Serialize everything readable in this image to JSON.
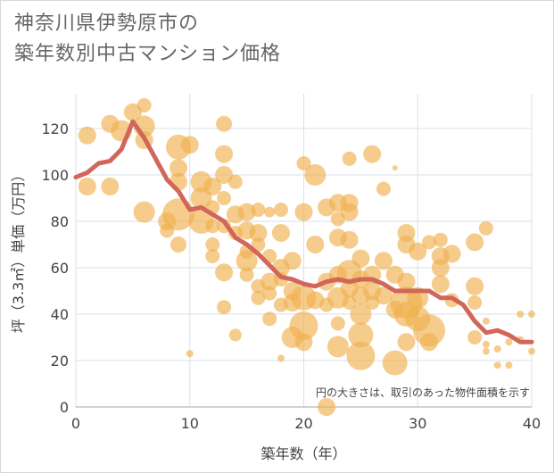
{
  "title_line1": "神奈川県伊勢原市の",
  "title_line2": "築年数別中古マンション価格",
  "colors": {
    "bubble": "#f0b04f",
    "line": "#d1665a",
    "grid": "#d8e1ea",
    "frame": "#d9d9d9",
    "text": "#444444",
    "title": "#666666"
  },
  "chart_data": {
    "type": "scatter",
    "xlabel": "築年数（年）",
    "ylabel": "坪（3.3㎡）単価（万円）",
    "xlim": [
      0,
      40
    ],
    "ylim": [
      0,
      135
    ],
    "xticks": [
      0,
      10,
      20,
      30,
      40
    ],
    "yticks": [
      0,
      20,
      40,
      60,
      80,
      100,
      120
    ],
    "grid": true,
    "annotation": "円の大きさは、取引のあった物件面積を示す",
    "series": [
      {
        "kind": "bubble",
        "points": [
          {
            "x": 1,
            "y": 117,
            "s": 10
          },
          {
            "x": 1,
            "y": 95,
            "s": 10
          },
          {
            "x": 3,
            "y": 122,
            "s": 10
          },
          {
            "x": 3,
            "y": 95,
            "s": 10
          },
          {
            "x": 4,
            "y": 119,
            "s": 12
          },
          {
            "x": 5,
            "y": 127,
            "s": 10
          },
          {
            "x": 6,
            "y": 130,
            "s": 8
          },
          {
            "x": 6,
            "y": 121,
            "s": 12
          },
          {
            "x": 6,
            "y": 115,
            "s": 10
          },
          {
            "x": 6,
            "y": 84,
            "s": 12
          },
          {
            "x": 8,
            "y": 80,
            "s": 10
          },
          {
            "x": 8,
            "y": 76,
            "s": 8
          },
          {
            "x": 9,
            "y": 112,
            "s": 14
          },
          {
            "x": 9,
            "y": 103,
            "s": 10
          },
          {
            "x": 9,
            "y": 97,
            "s": 10
          },
          {
            "x": 9,
            "y": 83,
            "s": 18
          },
          {
            "x": 9,
            "y": 70,
            "s": 9
          },
          {
            "x": 10,
            "y": 113,
            "s": 10
          },
          {
            "x": 10,
            "y": 23,
            "s": 4
          },
          {
            "x": 11,
            "y": 97,
            "s": 12
          },
          {
            "x": 11,
            "y": 90,
            "s": 12
          },
          {
            "x": 11,
            "y": 80,
            "s": 14
          },
          {
            "x": 12,
            "y": 95,
            "s": 10
          },
          {
            "x": 12,
            "y": 86,
            "s": 8
          },
          {
            "x": 12,
            "y": 78,
            "s": 8
          },
          {
            "x": 12,
            "y": 70,
            "s": 8
          },
          {
            "x": 12,
            "y": 65,
            "s": 8
          },
          {
            "x": 13,
            "y": 122,
            "s": 9
          },
          {
            "x": 13,
            "y": 109,
            "s": 10
          },
          {
            "x": 13,
            "y": 100,
            "s": 10
          },
          {
            "x": 13,
            "y": 90,
            "s": 8
          },
          {
            "x": 13,
            "y": 78,
            "s": 8
          },
          {
            "x": 13,
            "y": 58,
            "s": 10
          },
          {
            "x": 13,
            "y": 43,
            "s": 8
          },
          {
            "x": 14,
            "y": 97,
            "s": 8
          },
          {
            "x": 14,
            "y": 83,
            "s": 10
          },
          {
            "x": 14,
            "y": 75,
            "s": 8
          },
          {
            "x": 14,
            "y": 31,
            "s": 7
          },
          {
            "x": 15,
            "y": 84,
            "s": 10
          },
          {
            "x": 15,
            "y": 76,
            "s": 10
          },
          {
            "x": 15,
            "y": 67,
            "s": 8
          },
          {
            "x": 15,
            "y": 63,
            "s": 12
          },
          {
            "x": 15,
            "y": 57,
            "s": 8
          },
          {
            "x": 16,
            "y": 85,
            "s": 8
          },
          {
            "x": 16,
            "y": 75,
            "s": 10
          },
          {
            "x": 16,
            "y": 70,
            "s": 8
          },
          {
            "x": 16,
            "y": 52,
            "s": 8
          },
          {
            "x": 16,
            "y": 47,
            "s": 8
          },
          {
            "x": 17,
            "y": 84,
            "s": 6
          },
          {
            "x": 17,
            "y": 65,
            "s": 8
          },
          {
            "x": 17,
            "y": 54,
            "s": 10
          },
          {
            "x": 17,
            "y": 49,
            "s": 8
          },
          {
            "x": 17,
            "y": 38,
            "s": 8
          },
          {
            "x": 18,
            "y": 85,
            "s": 8
          },
          {
            "x": 18,
            "y": 75,
            "s": 10
          },
          {
            "x": 18,
            "y": 60,
            "s": 10
          },
          {
            "x": 18,
            "y": 55,
            "s": 8
          },
          {
            "x": 18,
            "y": 44,
            "s": 8
          },
          {
            "x": 18,
            "y": 21,
            "s": 4
          },
          {
            "x": 19,
            "y": 63,
            "s": 10
          },
          {
            "x": 19,
            "y": 50,
            "s": 10
          },
          {
            "x": 19,
            "y": 45,
            "s": 10
          },
          {
            "x": 19,
            "y": 30,
            "s": 12
          },
          {
            "x": 20,
            "y": 105,
            "s": 8
          },
          {
            "x": 20,
            "y": 84,
            "s": 10
          },
          {
            "x": 20,
            "y": 47,
            "s": 14
          },
          {
            "x": 20,
            "y": 35,
            "s": 16
          },
          {
            "x": 20,
            "y": 28,
            "s": 10
          },
          {
            "x": 21,
            "y": 100,
            "s": 12
          },
          {
            "x": 21,
            "y": 70,
            "s": 10
          },
          {
            "x": 21,
            "y": 46,
            "s": 10
          },
          {
            "x": 22,
            "y": 86,
            "s": 10
          },
          {
            "x": 22,
            "y": 54,
            "s": 10
          },
          {
            "x": 22,
            "y": 44,
            "s": 8
          },
          {
            "x": 22,
            "y": 0,
            "s": 10
          },
          {
            "x": 23,
            "y": 88,
            "s": 10
          },
          {
            "x": 23,
            "y": 81,
            "s": 8
          },
          {
            "x": 23,
            "y": 73,
            "s": 10
          },
          {
            "x": 23,
            "y": 57,
            "s": 10
          },
          {
            "x": 23,
            "y": 47,
            "s": 12
          },
          {
            "x": 23,
            "y": 36,
            "s": 8
          },
          {
            "x": 23,
            "y": 26,
            "s": 12
          },
          {
            "x": 24,
            "y": 107,
            "s": 8
          },
          {
            "x": 24,
            "y": 88,
            "s": 10
          },
          {
            "x": 24,
            "y": 84,
            "s": 10
          },
          {
            "x": 24,
            "y": 72,
            "s": 10
          },
          {
            "x": 24,
            "y": 58,
            "s": 14
          },
          {
            "x": 24,
            "y": 51,
            "s": 10
          },
          {
            "x": 24,
            "y": 45,
            "s": 8
          },
          {
            "x": 25,
            "y": 64,
            "s": 10
          },
          {
            "x": 25,
            "y": 55,
            "s": 10
          },
          {
            "x": 25,
            "y": 48,
            "s": 10
          },
          {
            "x": 25,
            "y": 40,
            "s": 12
          },
          {
            "x": 25,
            "y": 31,
            "s": 14
          },
          {
            "x": 25,
            "y": 22,
            "s": 16
          },
          {
            "x": 26,
            "y": 109,
            "s": 10
          },
          {
            "x": 26,
            "y": 57,
            "s": 10
          },
          {
            "x": 26,
            "y": 50,
            "s": 10
          },
          {
            "x": 26,
            "y": 45,
            "s": 8
          },
          {
            "x": 27,
            "y": 94,
            "s": 8
          },
          {
            "x": 27,
            "y": 63,
            "s": 10
          },
          {
            "x": 27,
            "y": 48,
            "s": 10
          },
          {
            "x": 28,
            "y": 103,
            "s": 3
          },
          {
            "x": 28,
            "y": 57,
            "s": 10
          },
          {
            "x": 28,
            "y": 42,
            "s": 10
          },
          {
            "x": 28,
            "y": 19,
            "s": 14
          },
          {
            "x": 29,
            "y": 75,
            "s": 10
          },
          {
            "x": 29,
            "y": 70,
            "s": 10
          },
          {
            "x": 29,
            "y": 54,
            "s": 10
          },
          {
            "x": 29,
            "y": 45,
            "s": 18
          },
          {
            "x": 29,
            "y": 40,
            "s": 14
          },
          {
            "x": 29,
            "y": 28,
            "s": 10
          },
          {
            "x": 30,
            "y": 67,
            "s": 10
          },
          {
            "x": 30,
            "y": 47,
            "s": 12
          },
          {
            "x": 30,
            "y": 38,
            "s": 14
          },
          {
            "x": 31,
            "y": 71,
            "s": 8
          },
          {
            "x": 31,
            "y": 33,
            "s": 18
          },
          {
            "x": 31,
            "y": 28,
            "s": 10
          },
          {
            "x": 32,
            "y": 72,
            "s": 8
          },
          {
            "x": 32,
            "y": 65,
            "s": 10
          },
          {
            "x": 32,
            "y": 60,
            "s": 10
          },
          {
            "x": 32,
            "y": 53,
            "s": 10
          },
          {
            "x": 33,
            "y": 66,
            "s": 10
          },
          {
            "x": 33,
            "y": 46,
            "s": 8
          },
          {
            "x": 35,
            "y": 71,
            "s": 10
          },
          {
            "x": 35,
            "y": 52,
            "s": 10
          },
          {
            "x": 35,
            "y": 45,
            "s": 8
          },
          {
            "x": 35,
            "y": 30,
            "s": 8
          },
          {
            "x": 36,
            "y": 77,
            "s": 8
          },
          {
            "x": 36,
            "y": 37,
            "s": 4
          },
          {
            "x": 36,
            "y": 27,
            "s": 4
          },
          {
            "x": 36,
            "y": 24,
            "s": 4
          },
          {
            "x": 37,
            "y": 18,
            "s": 4
          },
          {
            "x": 37,
            "y": 25,
            "s": 4
          },
          {
            "x": 38,
            "y": 28,
            "s": 4
          },
          {
            "x": 38,
            "y": 18,
            "s": 4
          },
          {
            "x": 39,
            "y": 40,
            "s": 4
          },
          {
            "x": 39,
            "y": 29,
            "s": 4
          },
          {
            "x": 40,
            "y": 40,
            "s": 4
          },
          {
            "x": 40,
            "y": 24,
            "s": 4
          }
        ]
      },
      {
        "kind": "line",
        "x": [
          0,
          1,
          2,
          3,
          4,
          5,
          6,
          7,
          8,
          9,
          10,
          11,
          12,
          13,
          14,
          15,
          16,
          17,
          18,
          19,
          20,
          21,
          22,
          23,
          24,
          25,
          26,
          27,
          28,
          29,
          30,
          31,
          32,
          33,
          34,
          35,
          36,
          37,
          38,
          39,
          40
        ],
        "y": [
          99,
          101,
          105,
          106,
          111,
          123,
          116,
          107,
          98,
          93,
          85,
          86,
          83,
          80,
          73,
          70,
          66,
          61,
          56,
          55,
          53,
          52,
          54,
          55,
          54,
          55,
          55,
          53,
          50,
          50,
          50,
          50,
          47,
          47,
          44,
          37,
          32,
          33,
          31,
          28,
          28
        ]
      }
    ]
  }
}
